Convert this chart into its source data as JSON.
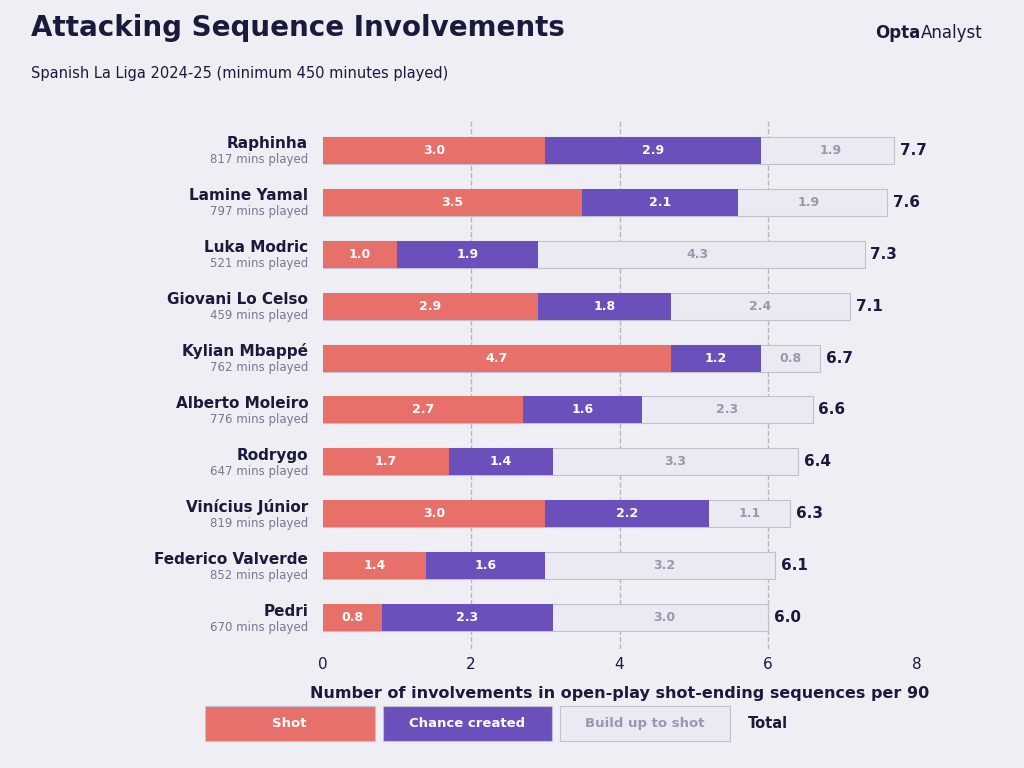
{
  "title": "Attacking Sequence Involvements",
  "subtitle": "Spanish La Liga 2024-25 (minimum 450 minutes played)",
  "xlabel": "Number of involvements in open-play shot-ending sequences per 90",
  "players": [
    {
      "name": "Raphinha",
      "mins": "817 mins played",
      "shot": 3.0,
      "chance": 2.9,
      "buildup": 1.9,
      "total": 7.7
    },
    {
      "name": "Lamine Yamal",
      "mins": "797 mins played",
      "shot": 3.5,
      "chance": 2.1,
      "buildup": 1.9,
      "total": 7.6
    },
    {
      "name": "Luka Modric",
      "mins": "521 mins played",
      "shot": 1.0,
      "chance": 1.9,
      "buildup": 4.3,
      "total": 7.3
    },
    {
      "name": "Giovani Lo Celso",
      "mins": "459 mins played",
      "shot": 2.9,
      "chance": 1.8,
      "buildup": 2.4,
      "total": 7.1
    },
    {
      "name": "Kylian Mbappé",
      "mins": "762 mins played",
      "shot": 4.7,
      "chance": 1.2,
      "buildup": 0.8,
      "total": 6.7
    },
    {
      "name": "Alberto Moleiro",
      "mins": "776 mins played",
      "shot": 2.7,
      "chance": 1.6,
      "buildup": 2.3,
      "total": 6.6
    },
    {
      "name": "Rodrygo",
      "mins": "647 mins played",
      "shot": 1.7,
      "chance": 1.4,
      "buildup": 3.3,
      "total": 6.4
    },
    {
      "name": "Vinícius Júnior",
      "mins": "819 mins played",
      "shot": 3.0,
      "chance": 2.2,
      "buildup": 1.1,
      "total": 6.3
    },
    {
      "name": "Federico Valverde",
      "mins": "852 mins played",
      "shot": 1.4,
      "chance": 1.6,
      "buildup": 3.2,
      "total": 6.1
    },
    {
      "name": "Pedri",
      "mins": "670 mins played",
      "shot": 0.8,
      "chance": 2.3,
      "buildup": 3.0,
      "total": 6.0
    }
  ],
  "color_shot": "#E8706A",
  "color_chance": "#6B4FBB",
  "color_buildup": "#EAEAF2",
  "color_buildup_text": "#9898B0",
  "bg_color": "#EEEEF4",
  "text_dark": "#1A1A3A",
  "xlim": [
    0,
    8
  ],
  "xticks": [
    0,
    2,
    4,
    6,
    8
  ],
  "bar_height": 0.52,
  "legend_labels": [
    "Shot",
    "Chance created",
    "Build up to shot"
  ],
  "legend_total": "Total"
}
